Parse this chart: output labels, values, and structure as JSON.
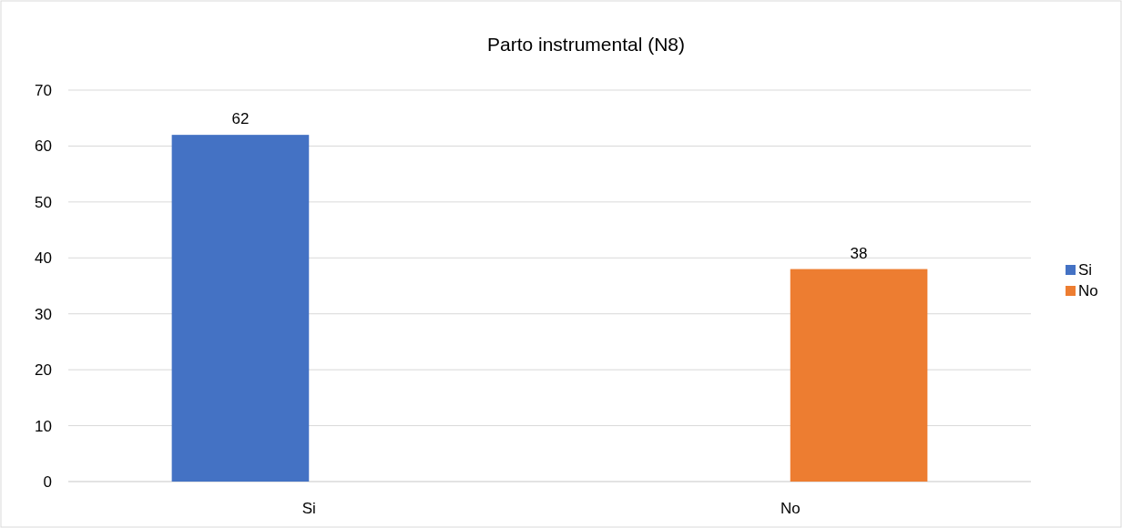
{
  "chart_data": {
    "type": "bar",
    "title": "Parto instrumental (N8)",
    "categories": [
      "Si",
      "No"
    ],
    "series": [
      {
        "name": "Si",
        "color": "#4472c4",
        "values": [
          62,
          null
        ]
      },
      {
        "name": "No",
        "color": "#ed7d31",
        "values": [
          null,
          38
        ]
      }
    ],
    "ylim": [
      0,
      70
    ],
    "yticks": [
      0,
      10,
      20,
      30,
      40,
      50,
      60,
      70
    ],
    "grid": "y",
    "data_labels": true,
    "legend": "right"
  }
}
